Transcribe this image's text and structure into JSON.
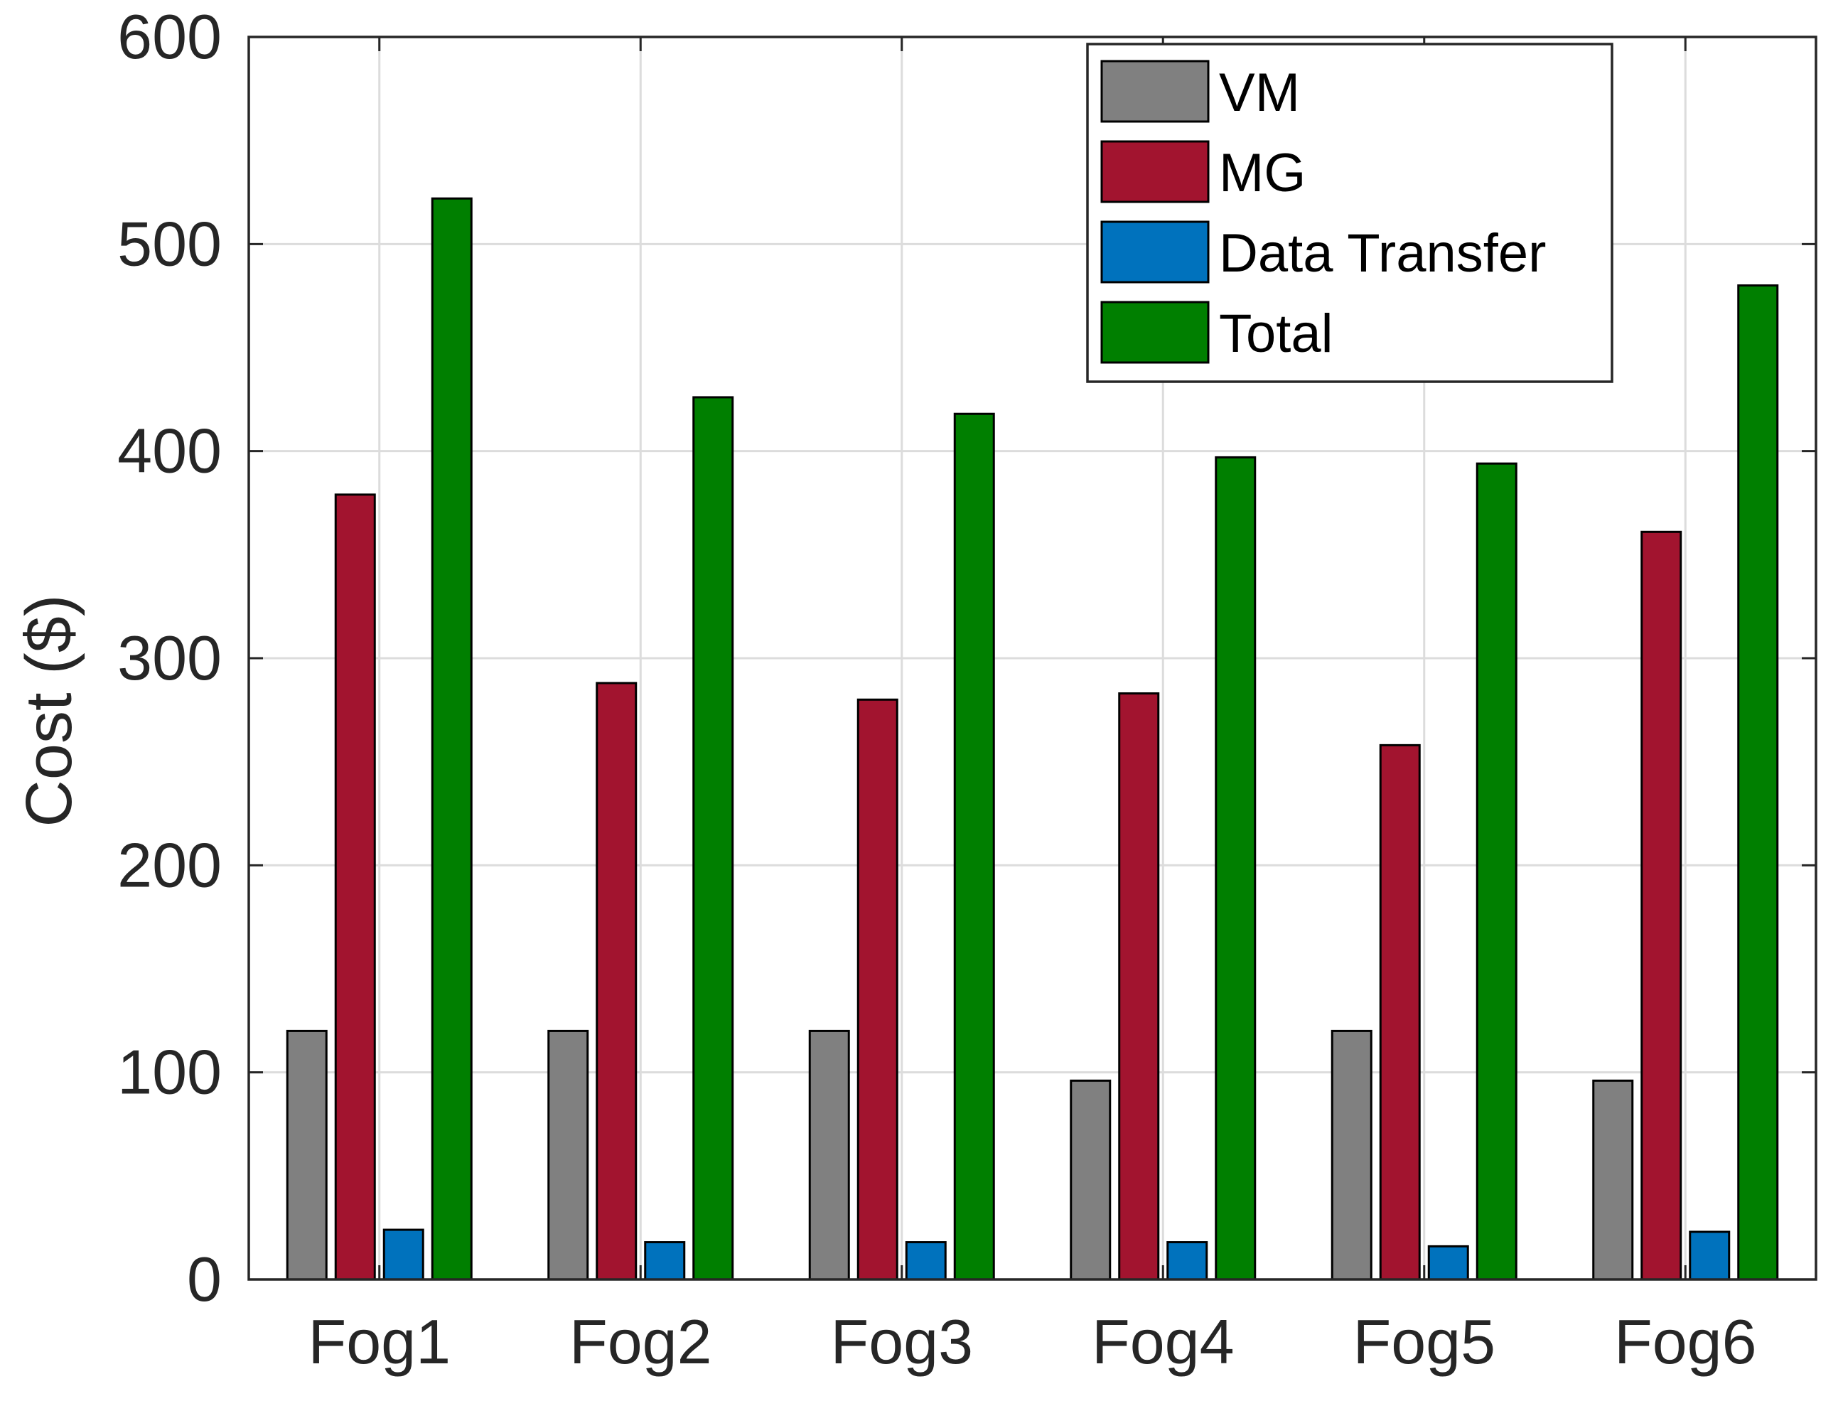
{
  "chart_data": {
    "type": "bar",
    "title": "",
    "xlabel": "",
    "ylabel": "Cost ($)",
    "ylim": [
      0,
      600
    ],
    "yticks": [
      0,
      100,
      200,
      300,
      400,
      500,
      600
    ],
    "grid": true,
    "legend_position": "top-right",
    "categories": [
      "Fog1",
      "Fog2",
      "Fog3",
      "Fog4",
      "Fog5",
      "Fog6"
    ],
    "series": [
      {
        "name": "VM",
        "color": "#808080",
        "values": [
          120,
          120,
          120,
          96,
          120,
          96
        ]
      },
      {
        "name": "MG",
        "color": "#A2142F",
        "values": [
          379,
          288,
          280,
          283,
          258,
          361
        ]
      },
      {
        "name": "Data Transfer",
        "color": "#0072BD",
        "values": [
          24,
          18,
          18,
          18,
          16,
          23
        ]
      },
      {
        "name": "Total",
        "color": "#007F00",
        "values": [
          522,
          426,
          418,
          397,
          394,
          480
        ]
      }
    ]
  }
}
